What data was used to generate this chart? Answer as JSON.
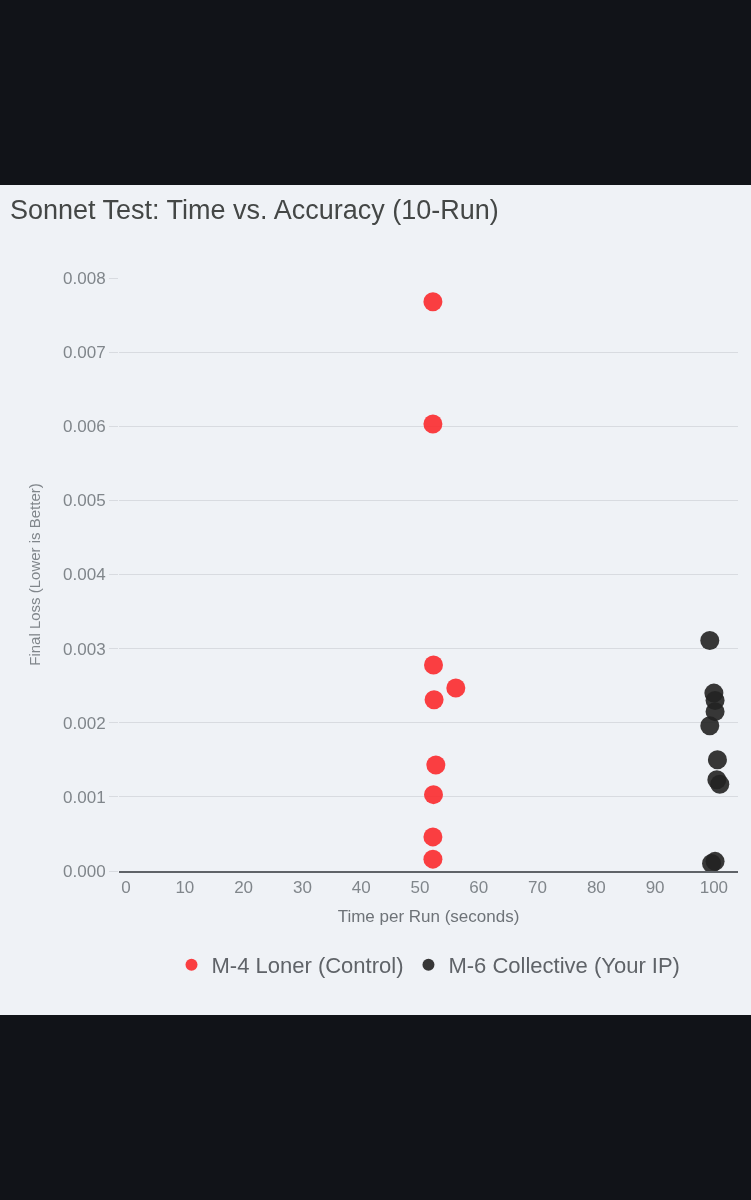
{
  "chart_data": {
    "type": "scatter",
    "title": "Sonnet Test: Time vs. Accuracy (10-Run)",
    "xlabel": "Time per Run (seconds)",
    "ylabel": "Final Loss (Lower is Better)",
    "xlim": [
      -1.2,
      104.1
    ],
    "xticks": [
      0,
      10,
      20,
      30,
      40,
      50,
      60,
      70,
      80,
      90,
      100
    ],
    "ylim": [
      0,
      0.008
    ],
    "yticks": [
      {
        "value": 0,
        "label": "0.000"
      },
      0.001,
      0.002,
      0.003,
      0.004,
      0.005,
      0.006,
      0.007,
      0.008
    ],
    "grid": "y",
    "legend": "bottom",
    "marker": "circle",
    "series": [
      {
        "name": "M-4 Loner (Control)",
        "color": "#fb2a2e",
        "x": [
          52.2,
          52.2,
          52.3,
          56.1,
          52.4,
          52.7,
          52.3,
          52.2,
          52.2
        ],
        "values": [
          0.00768,
          0.00603,
          0.00278,
          0.00247,
          0.00231,
          0.00143,
          0.00103,
          0.00046,
          0.00016
        ]
      },
      {
        "name": "M-6 Collective (Your IP)",
        "color": "#222222",
        "x": [
          99.3,
          100.0,
          100.2,
          100.2,
          99.3,
          100.6,
          100.5,
          101.0,
          100.2,
          99.6
        ],
        "values": [
          0.00311,
          0.0024,
          0.0023,
          0.00215,
          0.00196,
          0.0015,
          0.00123,
          0.00117,
          0.00013,
          0.0001
        ]
      }
    ]
  }
}
